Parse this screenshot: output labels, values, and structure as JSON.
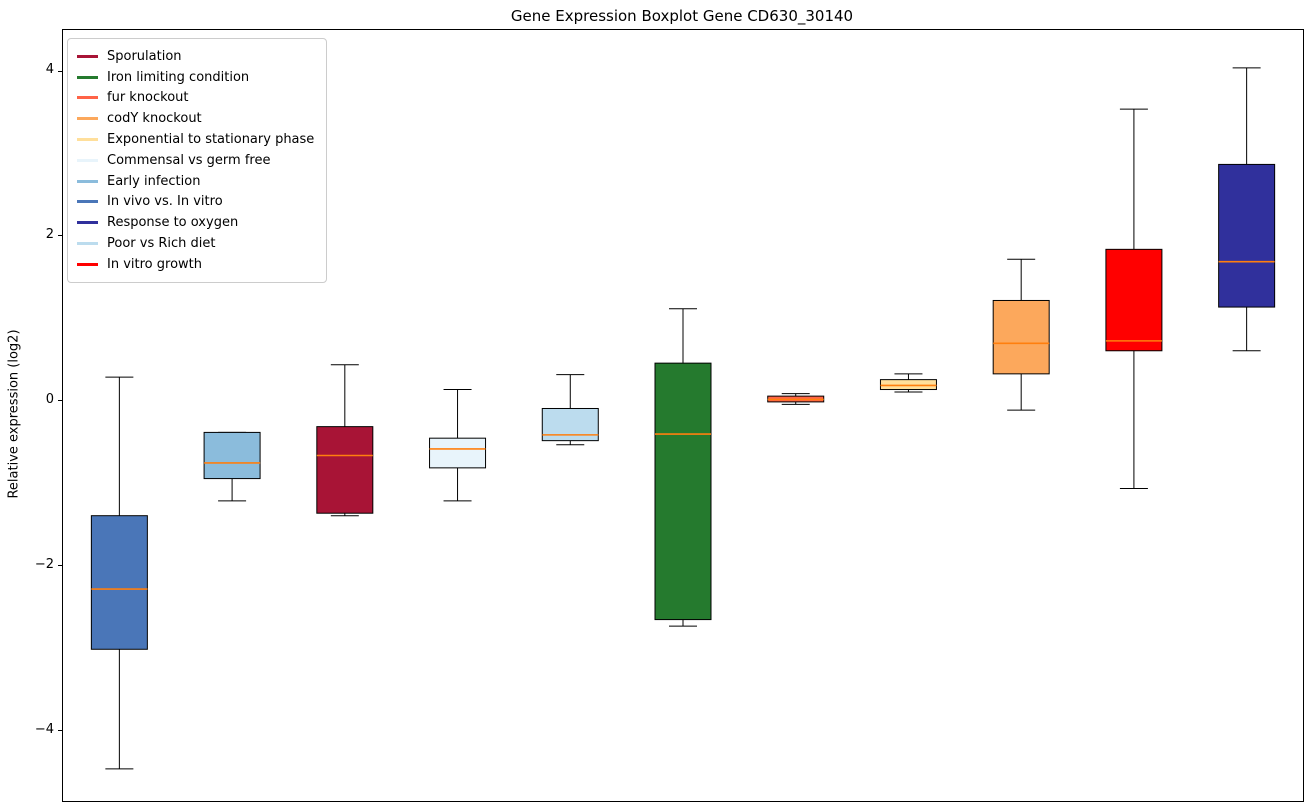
{
  "title": "Gene Expression Boxplot Gene CD630_30140",
  "ylabel": "Relative expression (log2)",
  "chart_data": {
    "type": "boxplot",
    "title": "Gene Expression Boxplot Gene CD630_30140",
    "xlabel": "",
    "ylabel": "Relative expression (log2)",
    "ylim": [
      -4.84,
      4.51
    ],
    "yticks": [
      -4,
      -2,
      0,
      2,
      4
    ],
    "grid": false,
    "legend_position": "upper left",
    "median_color": "#ff7f0e",
    "whisker_color": "#000000",
    "box_edge_color": "#000000",
    "legend_order": [
      "Sporulation",
      "Iron limiting condition",
      "fur knockout",
      "codY knockout",
      "Exponential to stationary phase",
      "Commensal vs germ free",
      "Early infection",
      "In vivo vs. In vitro",
      "Response to oxygen",
      "Poor vs Rich diet",
      "In vitro growth"
    ],
    "series": [
      {
        "name": "In vivo vs. In vitro",
        "color": "#4a76b8",
        "whisker_low": -4.45,
        "q1": -3.0,
        "median": -2.27,
        "q3": -1.38,
        "whisker_high": 0.3
      },
      {
        "name": "Early infection",
        "color": "#8bbcdc",
        "whisker_low": -1.2,
        "q1": -0.93,
        "median": -0.74,
        "q3": -0.37,
        "whisker_high": -0.37
      },
      {
        "name": "Sporulation",
        "color": "#a81436",
        "whisker_low": -1.38,
        "q1": -1.35,
        "median": -0.65,
        "q3": -0.3,
        "whisker_high": 0.45
      },
      {
        "name": "Commensal vs germ free",
        "color": "#e8f4fb",
        "whisker_low": -1.2,
        "q1": -0.8,
        "median": -0.57,
        "q3": -0.44,
        "whisker_high": 0.15
      },
      {
        "name": "Poor vs Rich diet",
        "color": "#bcdcee",
        "whisker_low": -0.52,
        "q1": -0.47,
        "median": -0.4,
        "q3": -0.08,
        "whisker_high": 0.33
      },
      {
        "name": "Iron limiting condition",
        "color": "#257a2e",
        "whisker_low": -2.72,
        "q1": -2.64,
        "median": -0.39,
        "q3": 0.47,
        "whisker_high": 1.13
      },
      {
        "name": "fur knockout",
        "color": "#ff6347",
        "whisker_low": -0.03,
        "q1": 0.0,
        "median": 0.03,
        "q3": 0.07,
        "whisker_high": 0.1
      },
      {
        "name": "Exponential to stationary phase",
        "color": "#ffdf9b",
        "whisker_low": 0.12,
        "q1": 0.15,
        "median": 0.2,
        "q3": 0.27,
        "whisker_high": 0.34
      },
      {
        "name": "codY knockout",
        "color": "#fca85c",
        "whisker_low": -0.1,
        "q1": 0.34,
        "median": 0.71,
        "q3": 1.23,
        "whisker_high": 1.73
      },
      {
        "name": "In vitro growth",
        "color": "#ff0000",
        "whisker_low": -1.05,
        "q1": 0.62,
        "median": 0.74,
        "q3": 1.85,
        "whisker_high": 3.55
      },
      {
        "name": "Response to oxygen",
        "color": "#30309c",
        "whisker_low": 0.62,
        "q1": 1.15,
        "median": 1.7,
        "q3": 2.88,
        "whisker_high": 4.05
      }
    ]
  }
}
